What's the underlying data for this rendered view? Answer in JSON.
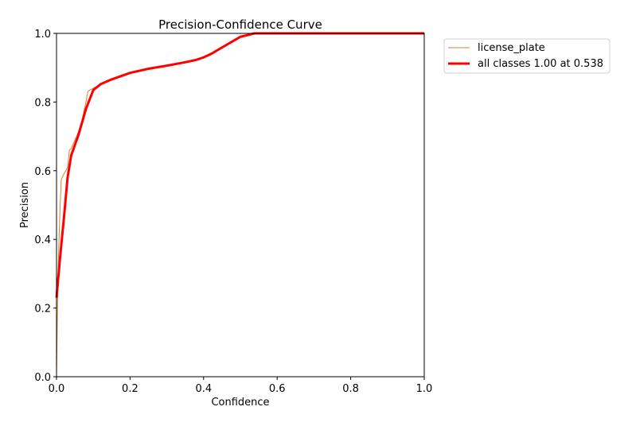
{
  "chart_data": {
    "type": "line",
    "title": "Precision-Confidence Curve",
    "xlabel": "Confidence",
    "ylabel": "Precision",
    "xlim": [
      0,
      1
    ],
    "ylim": [
      0,
      1
    ],
    "xticks": [
      "0.0",
      "0.2",
      "0.4",
      "0.6",
      "0.8",
      "1.0"
    ],
    "yticks": [
      "0.0",
      "0.2",
      "0.4",
      "0.6",
      "0.8",
      "1.0"
    ],
    "grid": false,
    "legend_position": "outside upper right",
    "series": [
      {
        "name": "license_plate",
        "color": "#d9822b",
        "linewidth": 1,
        "x": [
          0.0,
          0.003,
          0.006,
          0.01,
          0.013,
          0.02,
          0.03,
          0.035,
          0.04,
          0.05,
          0.055,
          0.06,
          0.07,
          0.08,
          0.085,
          0.09,
          0.1,
          0.12,
          0.15,
          0.2,
          0.25,
          0.3,
          0.35,
          0.38,
          0.42,
          0.46,
          0.5,
          0.538,
          0.6,
          0.7,
          0.8,
          0.9,
          1.0
        ],
        "y": [
          0.0,
          0.23,
          0.38,
          0.5,
          0.575,
          0.59,
          0.61,
          0.66,
          0.665,
          0.69,
          0.7,
          0.715,
          0.75,
          0.8,
          0.83,
          0.835,
          0.84,
          0.852,
          0.866,
          0.885,
          0.897,
          0.906,
          0.916,
          0.923,
          0.94,
          0.965,
          0.99,
          1.0,
          1.0,
          1.0,
          1.0,
          1.0,
          1.0
        ]
      },
      {
        "name": "all classes 1.00 at 0.538",
        "color": "#ff0000",
        "linewidth": 3,
        "x": [
          0.0,
          0.01,
          0.02,
          0.03,
          0.04,
          0.06,
          0.08,
          0.1,
          0.12,
          0.15,
          0.2,
          0.25,
          0.3,
          0.35,
          0.38,
          0.4,
          0.42,
          0.46,
          0.5,
          0.538,
          0.6,
          0.7,
          0.8,
          0.9,
          1.0
        ],
        "y": [
          0.23,
          0.35,
          0.46,
          0.58,
          0.645,
          0.705,
          0.78,
          0.835,
          0.852,
          0.866,
          0.885,
          0.897,
          0.906,
          0.916,
          0.923,
          0.93,
          0.94,
          0.965,
          0.99,
          1.0,
          1.0,
          1.0,
          1.0,
          1.0,
          1.0
        ]
      }
    ]
  }
}
